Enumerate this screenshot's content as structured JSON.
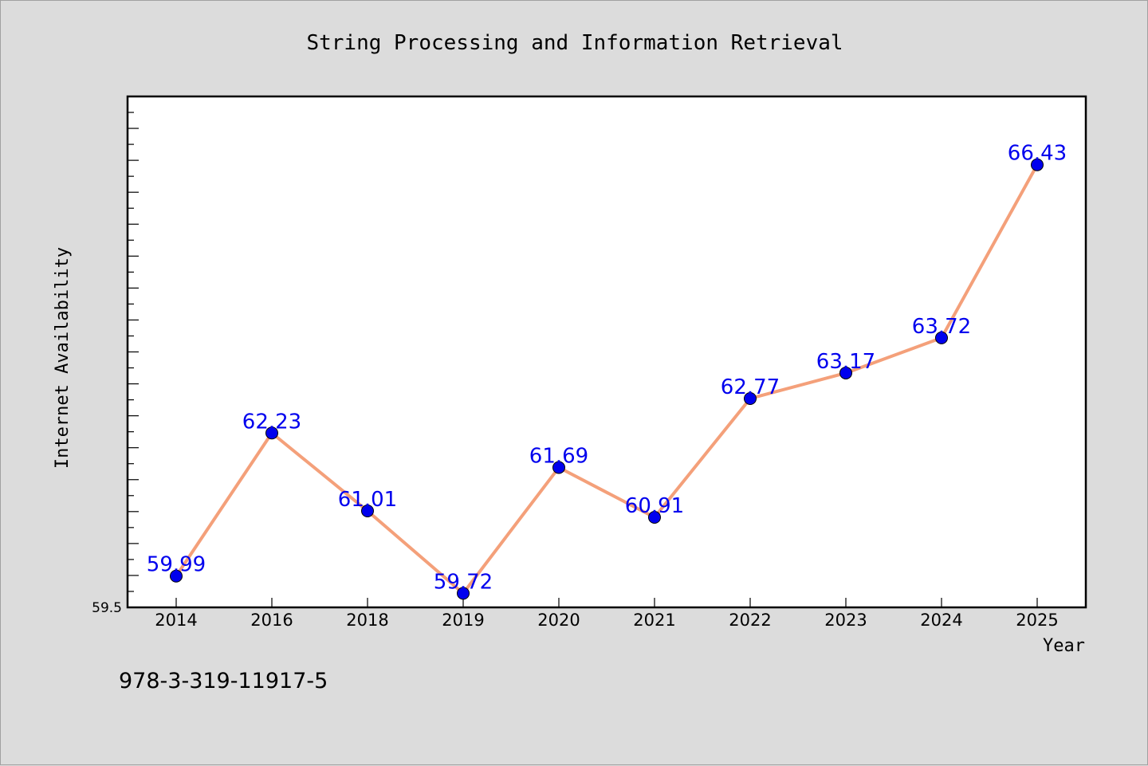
{
  "chart_data": {
    "type": "line",
    "title": "String Processing and Information Retrieval",
    "xlabel": "Year",
    "ylabel": "Internet Availability",
    "categories": [
      "2014",
      "2016",
      "2018",
      "2019",
      "2020",
      "2021",
      "2022",
      "2023",
      "2024",
      "2025"
    ],
    "series": [
      {
        "values": [
          59.99,
          62.23,
          61.01,
          59.72,
          61.69,
          60.91,
          62.77,
          63.17,
          63.72,
          66.43
        ],
        "labels": [
          "59.99",
          "62.23",
          "61.01",
          "59.72",
          "61.69",
          "60.91",
          "62.77",
          "63.17",
          "63.72",
          "66.43"
        ]
      }
    ],
    "ylim": [
      59.5,
      67.5
    ],
    "y_tick_labels": [
      "59.5"
    ],
    "grid": false,
    "legend": "none",
    "colors": {
      "line": "#f4a07a",
      "marker": "#0000ee",
      "label": "#0000ee",
      "plot_bg": "#ffffff",
      "page_bg": "#dcdcdc"
    }
  },
  "footnote": "978-3-319-11917-5"
}
